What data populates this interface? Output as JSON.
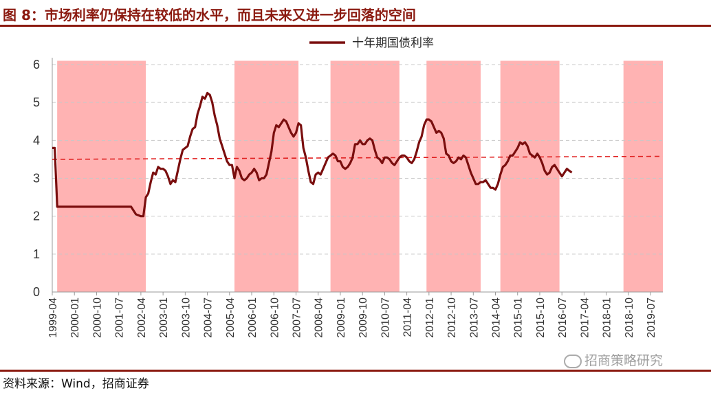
{
  "header": {
    "title": "图 8：市场利率仍保持在较低的水平，而且未来又进一步回落的空间"
  },
  "footer": {
    "source": "资料来源：Wind，招商证券"
  },
  "watermark": {
    "text": "招商策略研究",
    "icon": "wechat-icon"
  },
  "colors": {
    "accent": "#8B1A10",
    "line": "#7A0E0E",
    "band": "#FFB3B3",
    "mean": "#E02020"
  },
  "chart_data": {
    "type": "line",
    "legend": {
      "label": "十年期国债利率",
      "position": "top-center"
    },
    "y_ticks": [
      "0",
      "1",
      "2",
      "3",
      "4",
      "5",
      "6"
    ],
    "ylim": [
      0,
      6
    ],
    "x_ticks": [
      "1999-04",
      "2000-01",
      "2000-10",
      "2001-07",
      "2002-04",
      "2003-01",
      "2003-10",
      "2004-07",
      "2005-04",
      "2006-01",
      "2006-10",
      "2007-07",
      "2008-04",
      "2009-01",
      "2009-10",
      "2010-07",
      "2011-04",
      "2012-01",
      "2012-10",
      "2013-07",
      "2014-04",
      "2015-01",
      "2015-10",
      "2016-07",
      "2017-04",
      "2018-01",
      "2018-10",
      "2019-07"
    ],
    "xlim": [
      "1999-04",
      "2019-12"
    ],
    "grid": "horizontal-dashed",
    "mean_line": {
      "start": 3.5,
      "end": 3.58,
      "style": "dashed"
    },
    "shaded_periods": [
      [
        "1999-06",
        "2002-06"
      ],
      [
        "2005-06",
        "2007-08"
      ],
      [
        "2008-09",
        "2011-01"
      ],
      [
        "2011-12",
        "2013-10"
      ],
      [
        "2014-06",
        "2016-06"
      ],
      [
        "2018-08",
        "2020-01"
      ]
    ],
    "series": [
      {
        "name": "十年期国债利率",
        "points": [
          [
            "1999-04",
            3.8
          ],
          [
            "1999-05",
            3.8
          ],
          [
            "1999-06",
            2.25
          ],
          [
            "1999-09",
            2.25
          ],
          [
            "2000-01",
            2.25
          ],
          [
            "2000-06",
            2.25
          ],
          [
            "2001-01",
            2.25
          ],
          [
            "2001-06",
            2.25
          ],
          [
            "2001-09",
            2.25
          ],
          [
            "2001-12",
            2.25
          ],
          [
            "2002-02",
            2.05
          ],
          [
            "2002-04",
            2.0
          ],
          [
            "2002-05",
            2.0
          ],
          [
            "2002-06",
            2.5
          ],
          [
            "2002-07",
            2.6
          ],
          [
            "2002-08",
            2.9
          ],
          [
            "2002-09",
            3.15
          ],
          [
            "2002-10",
            3.1
          ],
          [
            "2002-11",
            3.3
          ],
          [
            "2002-12",
            3.25
          ],
          [
            "2003-01",
            3.25
          ],
          [
            "2003-02",
            3.2
          ],
          [
            "2003-03",
            3.05
          ],
          [
            "2003-04",
            2.85
          ],
          [
            "2003-05",
            2.95
          ],
          [
            "2003-06",
            2.9
          ],
          [
            "2003-07",
            3.2
          ],
          [
            "2003-08",
            3.5
          ],
          [
            "2003-09",
            3.75
          ],
          [
            "2003-10",
            3.8
          ],
          [
            "2003-11",
            3.85
          ],
          [
            "2003-12",
            4.1
          ],
          [
            "2004-01",
            4.3
          ],
          [
            "2004-02",
            4.35
          ],
          [
            "2004-03",
            4.7
          ],
          [
            "2004-04",
            4.9
          ],
          [
            "2004-05",
            5.15
          ],
          [
            "2004-06",
            5.1
          ],
          [
            "2004-07",
            5.25
          ],
          [
            "2004-08",
            5.2
          ],
          [
            "2004-09",
            5.0
          ],
          [
            "2004-10",
            4.65
          ],
          [
            "2004-11",
            4.4
          ],
          [
            "2004-12",
            4.05
          ],
          [
            "2005-01",
            3.85
          ],
          [
            "2005-02",
            3.65
          ],
          [
            "2005-03",
            3.45
          ],
          [
            "2005-04",
            3.35
          ],
          [
            "2005-05",
            3.35
          ],
          [
            "2005-06",
            3.0
          ],
          [
            "2005-07",
            3.3
          ],
          [
            "2005-08",
            3.2
          ],
          [
            "2005-09",
            3.0
          ],
          [
            "2005-10",
            2.95
          ],
          [
            "2005-11",
            3.0
          ],
          [
            "2005-12",
            3.1
          ],
          [
            "2006-01",
            3.15
          ],
          [
            "2006-02",
            3.25
          ],
          [
            "2006-03",
            3.15
          ],
          [
            "2006-04",
            2.95
          ],
          [
            "2006-05",
            3.0
          ],
          [
            "2006-06",
            3.0
          ],
          [
            "2006-07",
            3.1
          ],
          [
            "2006-08",
            3.4
          ],
          [
            "2006-09",
            3.7
          ],
          [
            "2006-10",
            4.2
          ],
          [
            "2006-11",
            4.4
          ],
          [
            "2006-12",
            4.35
          ],
          [
            "2007-01",
            4.45
          ],
          [
            "2007-02",
            4.55
          ],
          [
            "2007-03",
            4.5
          ],
          [
            "2007-04",
            4.35
          ],
          [
            "2007-05",
            4.2
          ],
          [
            "2007-06",
            4.1
          ],
          [
            "2007-07",
            4.2
          ],
          [
            "2007-08",
            4.45
          ],
          [
            "2007-09",
            4.4
          ],
          [
            "2007-10",
            3.8
          ],
          [
            "2007-11",
            3.55
          ],
          [
            "2007-12",
            3.2
          ],
          [
            "2008-01",
            2.9
          ],
          [
            "2008-02",
            2.85
          ],
          [
            "2008-03",
            3.1
          ],
          [
            "2008-04",
            3.15
          ],
          [
            "2008-05",
            3.1
          ],
          [
            "2008-06",
            3.25
          ],
          [
            "2008-07",
            3.4
          ],
          [
            "2008-08",
            3.55
          ],
          [
            "2008-09",
            3.6
          ],
          [
            "2008-10",
            3.65
          ],
          [
            "2008-11",
            3.6
          ],
          [
            "2008-12",
            3.45
          ],
          [
            "2009-01",
            3.45
          ],
          [
            "2009-02",
            3.3
          ],
          [
            "2009-03",
            3.25
          ],
          [
            "2009-04",
            3.3
          ],
          [
            "2009-05",
            3.4
          ],
          [
            "2009-06",
            3.55
          ],
          [
            "2009-07",
            3.9
          ],
          [
            "2009-08",
            3.9
          ],
          [
            "2009-09",
            4.0
          ],
          [
            "2009-10",
            3.9
          ],
          [
            "2009-11",
            3.9
          ],
          [
            "2009-12",
            4.0
          ],
          [
            "2010-01",
            4.05
          ],
          [
            "2010-02",
            4.0
          ],
          [
            "2010-03",
            3.75
          ],
          [
            "2010-04",
            3.55
          ],
          [
            "2010-05",
            3.5
          ],
          [
            "2010-06",
            3.4
          ],
          [
            "2010-07",
            3.55
          ],
          [
            "2010-08",
            3.55
          ],
          [
            "2010-09",
            3.5
          ],
          [
            "2010-10",
            3.4
          ],
          [
            "2010-11",
            3.35
          ],
          [
            "2010-12",
            3.45
          ],
          [
            "2011-01",
            3.55
          ],
          [
            "2011-02",
            3.6
          ],
          [
            "2011-03",
            3.6
          ],
          [
            "2011-04",
            3.55
          ],
          [
            "2011-05",
            3.45
          ],
          [
            "2011-06",
            3.4
          ],
          [
            "2011-07",
            3.5
          ],
          [
            "2011-08",
            3.7
          ],
          [
            "2011-09",
            3.95
          ],
          [
            "2011-10",
            4.1
          ],
          [
            "2011-11",
            4.4
          ],
          [
            "2011-12",
            4.55
          ],
          [
            "2012-01",
            4.55
          ],
          [
            "2012-02",
            4.5
          ],
          [
            "2012-03",
            4.35
          ],
          [
            "2012-04",
            4.2
          ],
          [
            "2012-05",
            4.25
          ],
          [
            "2012-06",
            4.2
          ],
          [
            "2012-07",
            4.05
          ],
          [
            "2012-08",
            3.65
          ],
          [
            "2012-09",
            3.6
          ],
          [
            "2012-10",
            3.45
          ],
          [
            "2012-11",
            3.4
          ],
          [
            "2012-12",
            3.45
          ],
          [
            "2013-01",
            3.55
          ],
          [
            "2013-02",
            3.5
          ],
          [
            "2013-03",
            3.6
          ],
          [
            "2013-04",
            3.55
          ],
          [
            "2013-05",
            3.35
          ],
          [
            "2013-06",
            3.15
          ],
          [
            "2013-07",
            3.0
          ],
          [
            "2013-08",
            2.85
          ],
          [
            "2013-09",
            2.85
          ],
          [
            "2013-10",
            2.9
          ],
          [
            "2013-11",
            2.9
          ],
          [
            "2013-12",
            2.95
          ],
          [
            "2014-01",
            2.85
          ],
          [
            "2014-02",
            2.75
          ],
          [
            "2014-03",
            2.75
          ],
          [
            "2014-04",
            2.7
          ],
          [
            "2014-05",
            2.85
          ],
          [
            "2014-06",
            3.1
          ],
          [
            "2014-07",
            3.3
          ],
          [
            "2014-08",
            3.35
          ],
          [
            "2014-09",
            3.45
          ],
          [
            "2014-10",
            3.6
          ],
          [
            "2014-11",
            3.6
          ],
          [
            "2014-12",
            3.7
          ],
          [
            "2015-01",
            3.8
          ],
          [
            "2015-02",
            3.95
          ],
          [
            "2015-03",
            3.9
          ],
          [
            "2015-04",
            3.95
          ],
          [
            "2015-05",
            3.85
          ],
          [
            "2015-06",
            3.65
          ],
          [
            "2015-07",
            3.6
          ],
          [
            "2015-08",
            3.55
          ],
          [
            "2015-09",
            3.65
          ],
          [
            "2015-10",
            3.55
          ],
          [
            "2015-11",
            3.4
          ],
          [
            "2015-12",
            3.2
          ],
          [
            "2016-01",
            3.1
          ],
          [
            "2016-02",
            3.15
          ],
          [
            "2016-03",
            3.3
          ],
          [
            "2016-04",
            3.35
          ],
          [
            "2016-05",
            3.25
          ],
          [
            "2016-06",
            3.15
          ],
          [
            "2016-07",
            3.05
          ],
          [
            "2016-08",
            3.15
          ],
          [
            "2016-09",
            3.25
          ],
          [
            "2016-10",
            3.2
          ],
          [
            "2016-11",
            3.15
          ]
        ]
      }
    ]
  }
}
